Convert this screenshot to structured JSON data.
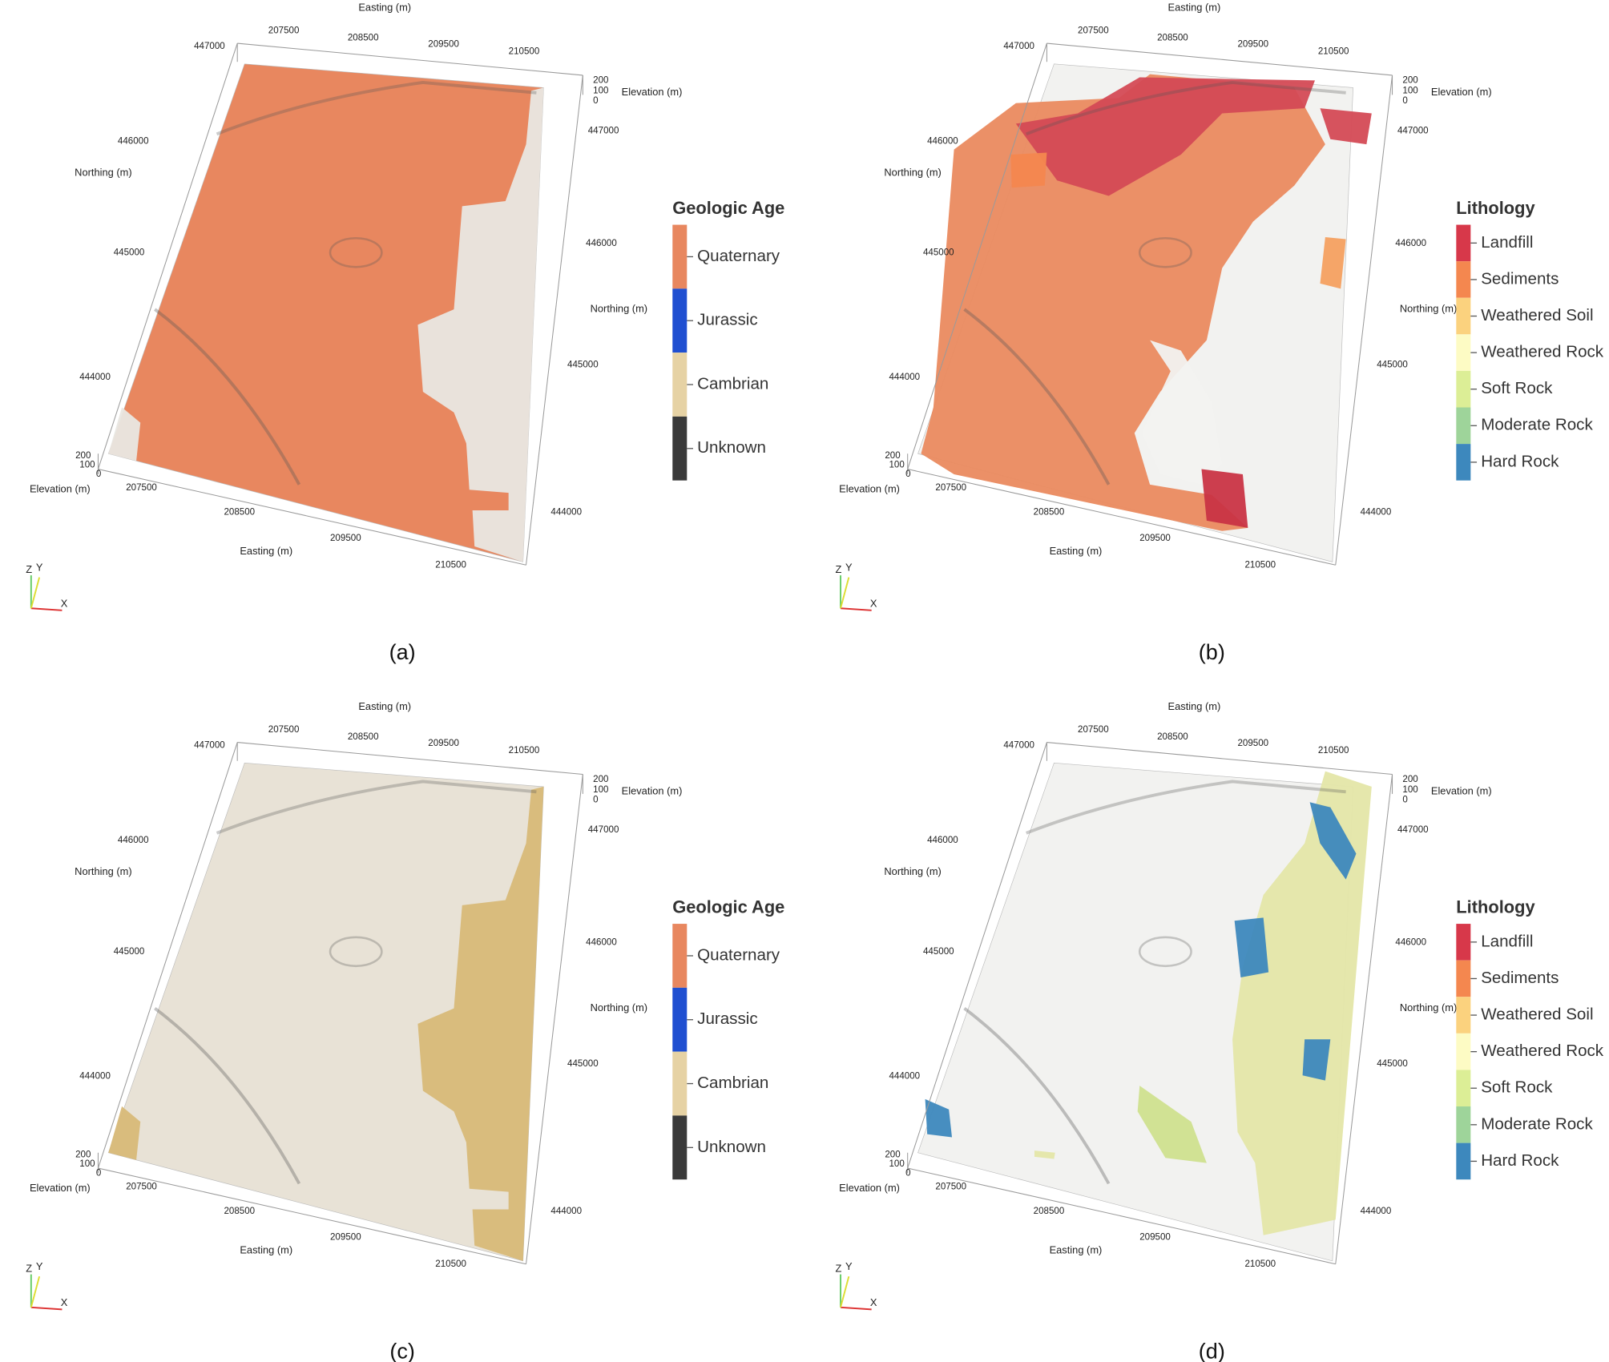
{
  "axes": {
    "easting_title": "Easting (m)",
    "northing_title": "Northing (m)",
    "elevation_title": "Elevation (m)",
    "easting_ticks": [
      "207500",
      "208500",
      "209500",
      "210500"
    ],
    "northing_ticks": [
      "447000",
      "446000",
      "445000",
      "444000"
    ],
    "elevation_ticks": [
      "200",
      "100",
      "0"
    ],
    "orientation_labels": [
      "Z",
      "Y",
      "X"
    ]
  },
  "panels": [
    {
      "caption": "(a)",
      "legend": {
        "title": "Geologic Age",
        "items": [
          {
            "label": "Quaternary",
            "color": "#e8875f"
          },
          {
            "label": "Jurassic",
            "color": "#1f4fd1"
          },
          {
            "label": "Cambrian",
            "color": "#e6d2a4"
          },
          {
            "label": "Unknown",
            "color": "#3a3a3a"
          }
        ]
      }
    },
    {
      "caption": "(b)",
      "legend": {
        "title": "Lithology",
        "items": [
          {
            "label": "Landfill",
            "color": "#d7384a"
          },
          {
            "label": "Sediments",
            "color": "#f4874f"
          },
          {
            "label": "Weathered Soil",
            "color": "#fbd27e"
          },
          {
            "label": "Weathered Rock",
            "color": "#fdfbc4"
          },
          {
            "label": "Soft Rock",
            "color": "#dcee96"
          },
          {
            "label": "Moderate Rock",
            "color": "#9ed49a"
          },
          {
            "label": "Hard Rock",
            "color": "#3d88bd"
          }
        ]
      }
    },
    {
      "caption": "(c)",
      "legend": {
        "title": "Geologic Age",
        "items": [
          {
            "label": "Quaternary",
            "color": "#e8875f"
          },
          {
            "label": "Jurassic",
            "color": "#1f4fd1"
          },
          {
            "label": "Cambrian",
            "color": "#e6d2a4"
          },
          {
            "label": "Unknown",
            "color": "#3a3a3a"
          }
        ]
      }
    },
    {
      "caption": "(d)",
      "legend": {
        "title": "Lithology",
        "items": [
          {
            "label": "Landfill",
            "color": "#d7384a"
          },
          {
            "label": "Sediments",
            "color": "#f4874f"
          },
          {
            "label": "Weathered Soil",
            "color": "#fbd27e"
          },
          {
            "label": "Weathered Rock",
            "color": "#fdfbc4"
          },
          {
            "label": "Soft Rock",
            "color": "#dcee96"
          },
          {
            "label": "Moderate Rock",
            "color": "#9ed49a"
          },
          {
            "label": "Hard Rock",
            "color": "#3d88bd"
          }
        ]
      }
    }
  ]
}
